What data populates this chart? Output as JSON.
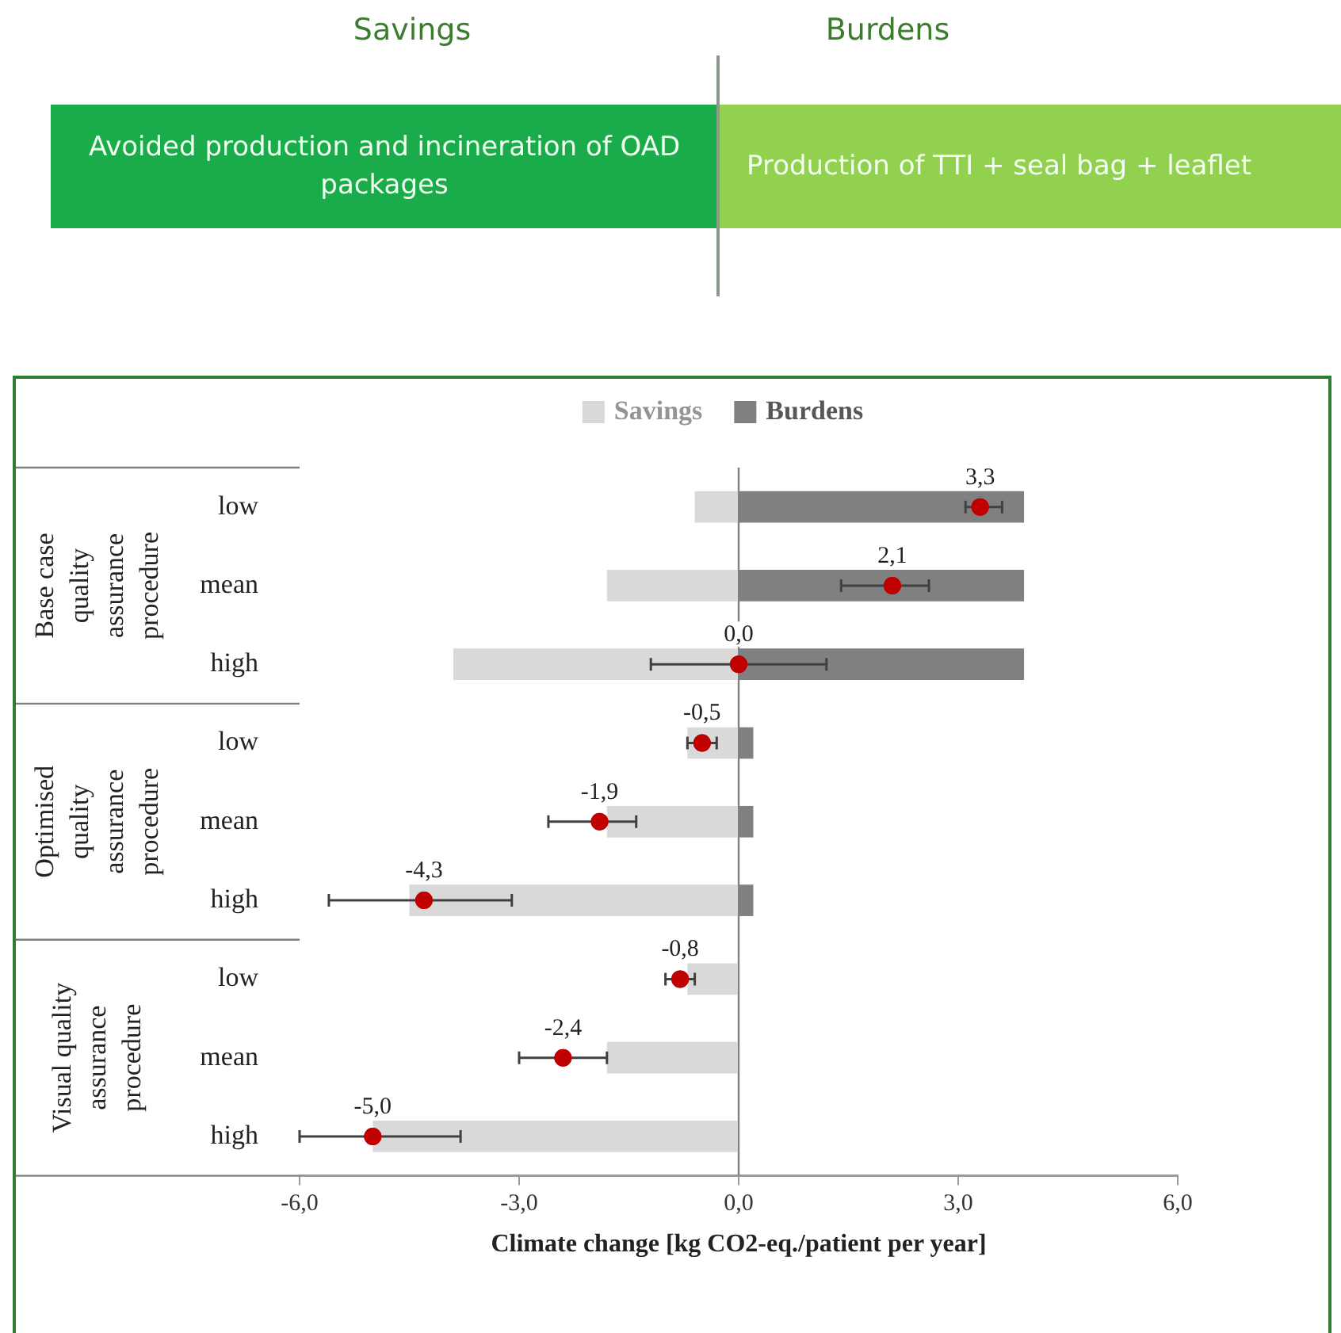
{
  "chart_data": {
    "type": "bar",
    "orientation": "horizontal",
    "stacked": true,
    "xlabel": "Climate change [kg CO2-eq./patient per year]",
    "annotations": [
      "Savings",
      "Burdens",
      "Avoided production and incineration of OAD packages",
      "Production of TTI + seal bag + leaflet",
      "Base case quality assurance procedure",
      "Optimised quality assurance procedure",
      "Visual quality assurance procedure"
    ],
    "categories": [
      "low",
      "mean",
      "high",
      "low",
      "mean",
      "high",
      "low",
      "mean",
      "high"
    ],
    "series": [
      {
        "name": "Savings",
        "color": "#d9d9d9",
        "values": [
          -0.6,
          -1.8,
          -3.9,
          -0.7,
          -1.8,
          -4.5,
          -0.7,
          -1.8,
          -5.0
        ]
      },
      {
        "name": "Burdens",
        "color": "#808080",
        "values": [
          3.9,
          3.9,
          3.9,
          0.2,
          0.2,
          0.2,
          null,
          null,
          null
        ]
      },
      {
        "type": "scatter",
        "color": "#c00000",
        "marker": "circle",
        "values": [
          3.3,
          2.1,
          0.0,
          -0.5,
          -1.9,
          -4.3,
          -0.8,
          -2.4,
          -5.0
        ],
        "errors": [
          [
            3.1,
            3.6
          ],
          [
            1.4,
            2.6
          ],
          [
            -1.2,
            1.2
          ],
          [
            -0.7,
            -0.3
          ],
          [
            -2.6,
            -1.4
          ],
          [
            -5.6,
            -3.1
          ],
          [
            -1.0,
            -0.6
          ],
          [
            -3.0,
            -1.8
          ],
          [
            -6.0,
            -3.8
          ]
        ],
        "value_labels": [
          "3,3",
          "2,1",
          "0,0",
          "-0,5",
          "-1,9",
          "-4,3",
          "-0,8",
          "-2,4",
          "-5,0"
        ]
      }
    ],
    "xlim": [
      -6,
      6
    ],
    "xticks": [
      {
        "value": -6,
        "label": "-6,0"
      },
      {
        "value": -3,
        "label": "-3,0"
      },
      {
        "value": 0,
        "label": "0,0"
      },
      {
        "value": 3,
        "label": "3,0"
      },
      {
        "value": 6,
        "label": "6,0"
      }
    ],
    "ref_lines": [
      {
        "axis": "x",
        "value": 0,
        "color": "#808080"
      }
    ],
    "legend": "top"
  }
}
